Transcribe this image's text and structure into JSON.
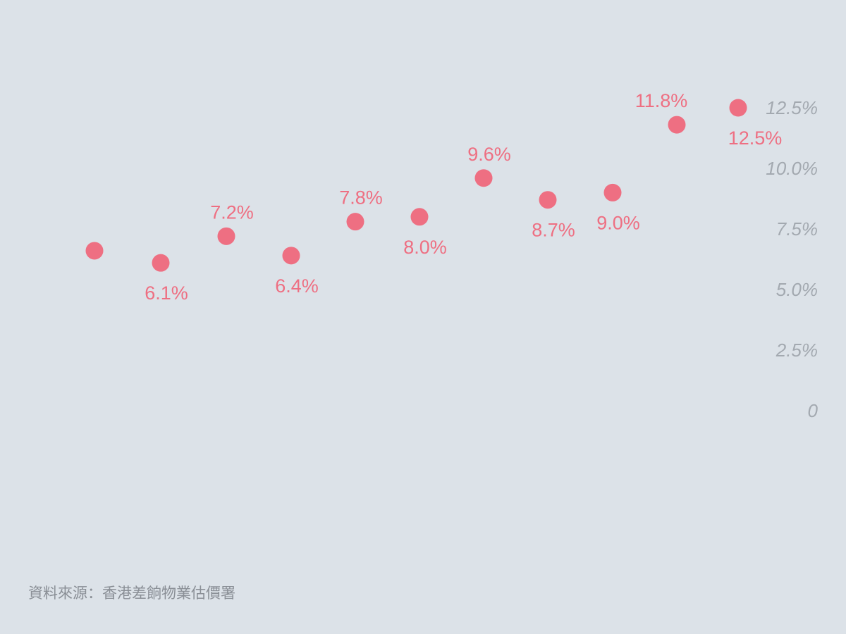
{
  "chart_data": {
    "type": "scatter",
    "title": "",
    "xlabel": "",
    "ylabel": "",
    "ylim": [
      0,
      12.5
    ],
    "y_ticks": [
      "0",
      "2.5%",
      "5.0%",
      "7.5%",
      "10.0%",
      "12.5%"
    ],
    "y_tick_values": [
      0,
      2.5,
      5.0,
      7.5,
      10.0,
      12.5
    ],
    "y_axis_side": "right",
    "grid": false,
    "x": [
      1,
      2,
      3,
      4,
      5,
      6,
      7,
      8,
      9,
      10,
      11
    ],
    "values": [
      6.6,
      6.1,
      7.2,
      6.4,
      7.8,
      8.0,
      9.6,
      8.7,
      9.0,
      11.8,
      12.5
    ],
    "labels": [
      "",
      "6.1%",
      "7.2%",
      "6.4%",
      "7.8%",
      "8.0%",
      "9.6%",
      "8.7%",
      "9.0%",
      "11.8%",
      "12.5%"
    ],
    "label_positions": [
      "none",
      "below",
      "above",
      "below",
      "above",
      "below",
      "above",
      "below",
      "below",
      "above",
      "below"
    ],
    "color": "#ee6f82"
  },
  "source": "資料來源：香港差餉物業估價署"
}
